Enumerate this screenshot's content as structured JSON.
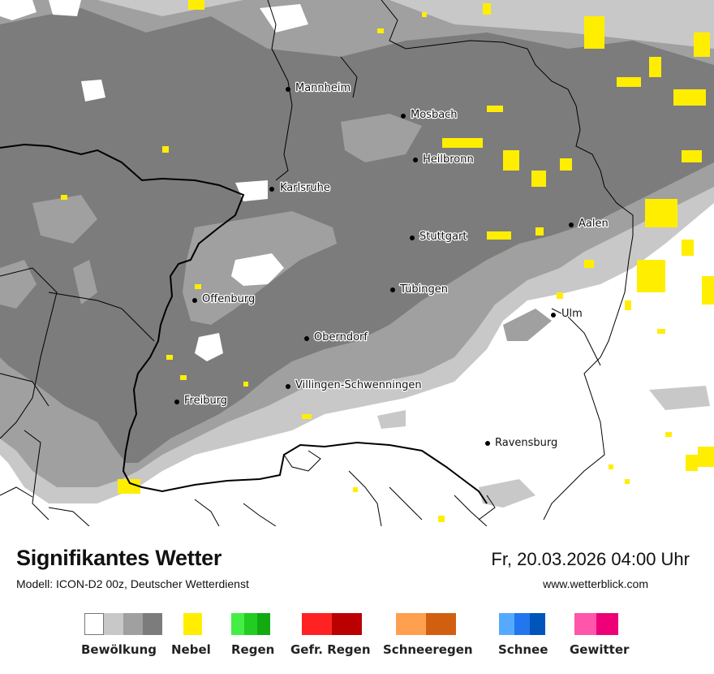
{
  "title": "Signifikantes Wetter",
  "subtitle": "Modell: ICON-D2 00z, Deutscher Wetterdienst",
  "datetime": "Fr, 20.03.2026 04:00 Uhr",
  "website": "www.wetterblick.com",
  "cities": [
    {
      "name": "Mannheim"
    },
    {
      "name": "Mosbach"
    },
    {
      "name": "Heilbronn"
    },
    {
      "name": "Karlsruhe"
    },
    {
      "name": "Aalen"
    },
    {
      "name": "Stuttgart"
    },
    {
      "name": "Tübingen"
    },
    {
      "name": "Offenburg"
    },
    {
      "name": "Ulm"
    },
    {
      "name": "Oberndorf"
    },
    {
      "name": "Villingen-Schwenningen"
    },
    {
      "name": "Freiburg"
    },
    {
      "name": "Ravensburg"
    }
  ],
  "legend": [
    {
      "label": "Bewölkung",
      "colors": [
        "#ffffff",
        "#c8c8c8",
        "#a0a0a0",
        "#7c7c7c"
      ]
    },
    {
      "label": "Nebel",
      "colors": [
        "#ffee00"
      ]
    },
    {
      "label": "Regen",
      "colors": [
        "#44ee44",
        "#22cc22",
        "#11aa11"
      ]
    },
    {
      "label": "Gefr. Regen",
      "colors": [
        "#ff2222",
        "#bb0000"
      ]
    },
    {
      "label": "Schneeregen",
      "colors": [
        "#ffa050",
        "#d06010"
      ]
    },
    {
      "label": "Schnee",
      "colors": [
        "#55aaff",
        "#2277ee",
        "#0055bb"
      ]
    },
    {
      "label": "Gewitter",
      "colors": [
        "#ff55aa",
        "#ee0077"
      ]
    }
  ],
  "map_colors": {
    "clear": "#ffffff",
    "light_cloud": "#c8c8c8",
    "medium_cloud": "#a0a0a0",
    "dense_cloud": "#7c7c7c",
    "fog": "#ffee00"
  }
}
